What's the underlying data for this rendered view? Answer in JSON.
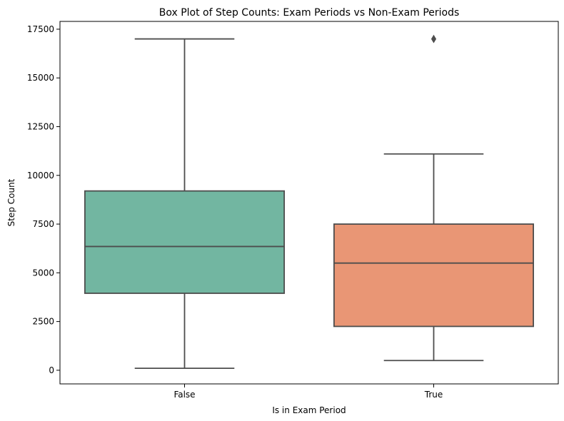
{
  "chart_data": {
    "type": "box",
    "title": "Box Plot of Step Counts: Exam Periods vs Non-Exam Periods",
    "xlabel": "Is in Exam Period",
    "ylabel": "Step Count",
    "ylim": [
      -700,
      17900
    ],
    "yticks": [
      0,
      2500,
      5000,
      7500,
      10000,
      12500,
      15000,
      17500
    ],
    "ytick_labels": [
      "0",
      "2500",
      "5000",
      "7500",
      "10000",
      "12500",
      "15000",
      "17500"
    ],
    "categories": [
      "False",
      "True"
    ],
    "boxes": [
      {
        "category": "False",
        "whisker_low": 100,
        "q1": 3950,
        "median": 6350,
        "q3": 9200,
        "whisker_high": 17000,
        "outliers": []
      },
      {
        "category": "True",
        "whisker_low": 500,
        "q1": 2250,
        "median": 5500,
        "q3": 7500,
        "whisker_high": 11100,
        "outliers": [
          17000
        ]
      }
    ],
    "colors": [
      "#72b6a1",
      "#e99675"
    ],
    "line_color": "#4d4d4d",
    "grid": false,
    "legend": "none"
  }
}
